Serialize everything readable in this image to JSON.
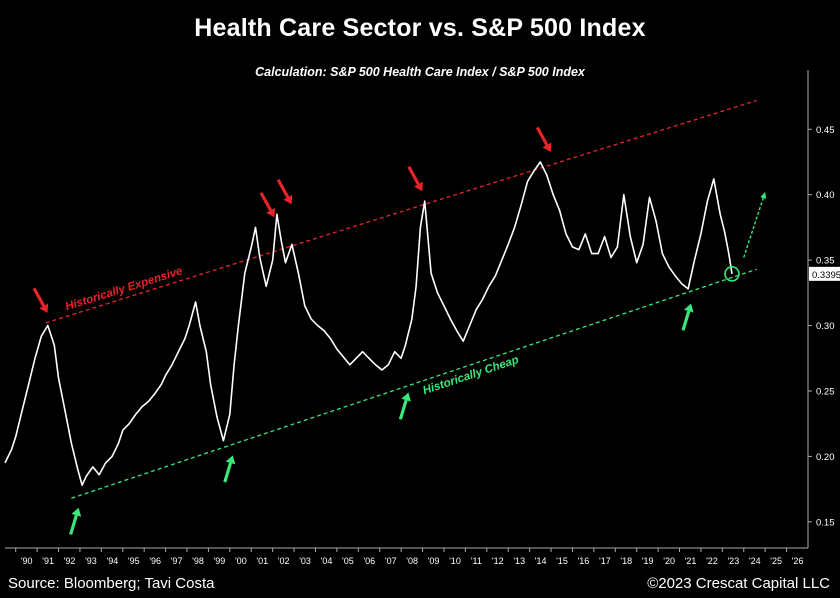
{
  "title": "Health Care Sector vs. S&P 500 Index",
  "subtitle": "Calculation: S&P 500 Health Care Index / S&P 500 Index",
  "footer": {
    "source": "Source: Bloomberg; Tavi Costa",
    "copyright": "©2023 Crescat Capital LLC"
  },
  "colors": {
    "background": "#000000",
    "line": "#ffffff",
    "expensive": "#e8242a",
    "cheap": "#39e87a",
    "axis": "#aaaaaa"
  },
  "chart_data": {
    "type": "line",
    "title": "Health Care Sector vs. S&P 500 Index",
    "subtitle": "Calculation: S&P 500 Health Care Index / S&P 500 Index",
    "xlim": [
      1989.5,
      2027
    ],
    "ylim": [
      0.13,
      0.48
    ],
    "y_ticks": [
      0.15,
      0.2,
      0.25,
      0.3,
      0.35,
      0.4,
      0.45
    ],
    "y_tick_labels": [
      "0.15",
      "0.20",
      "0.25",
      "0.30",
      "0.35",
      "0.40",
      "0.45"
    ],
    "x_ticks": [
      1990,
      1991,
      1992,
      1993,
      1994,
      1995,
      1996,
      1997,
      1998,
      1999,
      2000,
      2001,
      2002,
      2003,
      2004,
      2005,
      2006,
      2007,
      2008,
      2009,
      2010,
      2011,
      2012,
      2013,
      2014,
      2015,
      2016,
      2017,
      2018,
      2019,
      2020,
      2021,
      2022,
      2023,
      2024,
      2025,
      2026
    ],
    "x_tick_labels": [
      "'90",
      "'91",
      "'92",
      "'93",
      "'94",
      "'95",
      "'96",
      "'97",
      "'98",
      "'99",
      "'00",
      "'01",
      "'02",
      "'03",
      "'04",
      "'05",
      "'06",
      "'07",
      "'08",
      "'09",
      "'10",
      "'11",
      "'12",
      "'13",
      "'14",
      "'15",
      "'16",
      "'17",
      "'18",
      "'19",
      "'20",
      "'21",
      "'22",
      "'23",
      "'24",
      "'25",
      "'26"
    ],
    "grid": false,
    "y_axis_side": "right",
    "last_value_label": "0.3395",
    "series": [
      {
        "x": [
          1989.5,
          1989.8,
          1990.0,
          1990.3,
          1990.6,
          1990.9,
          1991.2,
          1991.5,
          1991.8,
          1992.0,
          1992.3,
          1992.6,
          1992.9,
          1993.1,
          1993.3,
          1993.6,
          1993.9,
          1994.2,
          1994.5,
          1994.8,
          1995.0,
          1995.3,
          1995.6,
          1995.9,
          1996.2,
          1996.5,
          1996.8,
          1997.0,
          1997.3,
          1997.6,
          1997.9,
          1998.1,
          1998.4,
          1998.6,
          1998.9,
          1999.1,
          1999.4,
          1999.7,
          2000.0,
          2000.2,
          2000.4,
          2000.7,
          2001.0,
          2001.2,
          2001.4,
          2001.7,
          2002.0,
          2002.2,
          2002.4,
          2002.6,
          2002.9,
          2003.2,
          2003.5,
          2003.8,
          2004.1,
          2004.4,
          2004.7,
          2005.0,
          2005.3,
          2005.6,
          2005.9,
          2006.2,
          2006.5,
          2006.8,
          2007.1,
          2007.4,
          2007.7,
          2008.0,
          2008.2,
          2008.5,
          2008.7,
          2008.9,
          2009.1,
          2009.4,
          2009.7,
          2010.0,
          2010.3,
          2010.6,
          2010.9,
          2011.2,
          2011.5,
          2011.8,
          2012.1,
          2012.4,
          2012.7,
          2013.0,
          2013.3,
          2013.6,
          2013.9,
          2014.2,
          2014.5,
          2014.8,
          2015.1,
          2015.4,
          2015.7,
          2016.0,
          2016.3,
          2016.6,
          2016.9,
          2017.2,
          2017.5,
          2017.8,
          2018.1,
          2018.4,
          2018.7,
          2019.0,
          2019.3,
          2019.6,
          2019.9,
          2020.2,
          2020.5,
          2020.8,
          2021.1,
          2021.4,
          2021.7,
          2022.0,
          2022.3,
          2022.6,
          2022.9,
          2023.1,
          2023.3,
          2023.45
        ],
        "y": [
          0.195,
          0.205,
          0.215,
          0.235,
          0.255,
          0.275,
          0.292,
          0.3,
          0.285,
          0.26,
          0.235,
          0.21,
          0.19,
          0.178,
          0.185,
          0.192,
          0.186,
          0.195,
          0.2,
          0.21,
          0.22,
          0.225,
          0.232,
          0.238,
          0.242,
          0.248,
          0.255,
          0.262,
          0.27,
          0.28,
          0.29,
          0.3,
          0.318,
          0.3,
          0.28,
          0.255,
          0.23,
          0.212,
          0.232,
          0.27,
          0.3,
          0.34,
          0.36,
          0.375,
          0.352,
          0.33,
          0.35,
          0.385,
          0.365,
          0.348,
          0.362,
          0.34,
          0.315,
          0.305,
          0.3,
          0.296,
          0.29,
          0.282,
          0.276,
          0.27,
          0.275,
          0.28,
          0.275,
          0.27,
          0.266,
          0.27,
          0.28,
          0.275,
          0.285,
          0.305,
          0.33,
          0.375,
          0.395,
          0.34,
          0.325,
          0.315,
          0.305,
          0.296,
          0.288,
          0.3,
          0.312,
          0.32,
          0.33,
          0.338,
          0.35,
          0.362,
          0.375,
          0.392,
          0.41,
          0.418,
          0.425,
          0.415,
          0.4,
          0.388,
          0.37,
          0.36,
          0.358,
          0.37,
          0.355,
          0.355,
          0.368,
          0.352,
          0.36,
          0.4,
          0.368,
          0.348,
          0.362,
          0.398,
          0.38,
          0.355,
          0.345,
          0.338,
          0.332,
          0.328,
          0.35,
          0.37,
          0.395,
          0.412,
          0.385,
          0.372,
          0.355,
          0.3395
        ]
      }
    ],
    "annotations": [
      {
        "text": "Historically Expensive",
        "color": "#e8242a"
      },
      {
        "text": "Historically Cheap",
        "color": "#39e87a"
      }
    ],
    "trendlines": [
      {
        "name": "expensive",
        "color": "#e8242a",
        "x": [
          1991.4,
          2024.6
        ],
        "y": [
          0.302,
          0.472
        ]
      },
      {
        "name": "cheap",
        "color": "#39e87a",
        "x": [
          1992.6,
          2024.6
        ],
        "y": [
          0.168,
          0.343
        ]
      }
    ],
    "red_arrows": [
      {
        "x": 1991.3,
        "y": 0.302
      },
      {
        "x": 2001.9,
        "y": 0.375
      },
      {
        "x": 2002.7,
        "y": 0.385
      },
      {
        "x": 2008.8,
        "y": 0.395
      },
      {
        "x": 2014.8,
        "y": 0.425
      }
    ],
    "green_arrows": [
      {
        "x": 1992.8,
        "y": 0.17
      },
      {
        "x": 2000.0,
        "y": 0.21
      },
      {
        "x": 2008.2,
        "y": 0.258
      },
      {
        "x": 2021.4,
        "y": 0.326
      }
    ],
    "forecast_arrow": {
      "x": [
        2024.0,
        2025.0
      ],
      "y": [
        0.352,
        0.402
      ]
    },
    "circle_marker": {
      "x": 2023.45,
      "y": 0.3395
    }
  }
}
